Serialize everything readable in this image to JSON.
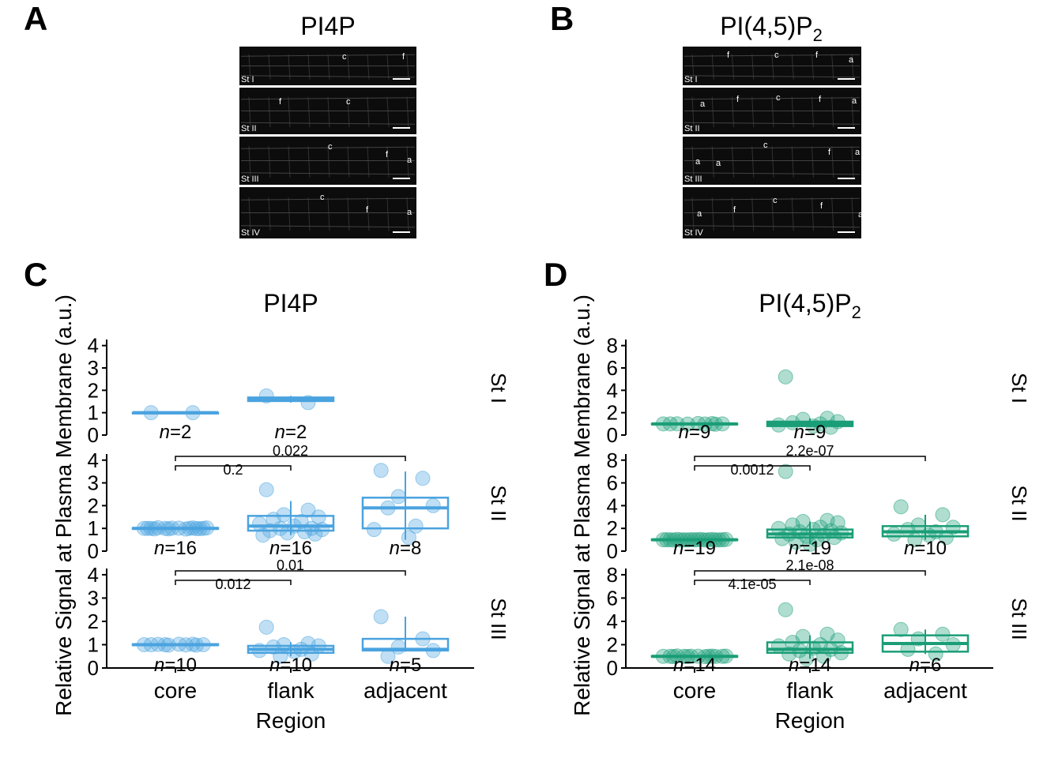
{
  "panel_letters": {
    "a": "A",
    "b": "B",
    "c": "C",
    "d": "D"
  },
  "micrographs": [
    {
      "title": "PI4P",
      "subscript": "",
      "rows": [
        {
          "stage": "St I",
          "labels": [
            "c",
            "f"
          ]
        },
        {
          "stage": "St II",
          "labels": [
            "f",
            "c"
          ]
        },
        {
          "stage": "St III",
          "labels": [
            "c",
            "f",
            "a"
          ]
        },
        {
          "stage": "St IV",
          "labels": [
            "c",
            "f",
            "a"
          ]
        }
      ]
    },
    {
      "title": "PI(4,5)P",
      "subscript": "2",
      "rows": [
        {
          "stage": "St I",
          "labels": [
            "f",
            "c",
            "f",
            "a"
          ]
        },
        {
          "stage": "St II",
          "labels": [
            "a",
            "f",
            "c",
            "f",
            "a"
          ]
        },
        {
          "stage": "St III",
          "labels": [
            "a",
            "a",
            "c",
            "f",
            "a"
          ]
        },
        {
          "stage": "St IV",
          "labels": [
            "a",
            "f",
            "c",
            "f",
            "a"
          ]
        }
      ]
    }
  ],
  "chart_data": [
    {
      "type": "box",
      "title": "PI4P",
      "title_subscript": "",
      "xlabel": "Region",
      "ylabel": "Relative Signal at Plasma Membrane (a.u.)",
      "categories": [
        "core",
        "flank",
        "adjacent"
      ],
      "ylim": [
        0,
        4.2
      ],
      "yticks": [
        0,
        1,
        2,
        3,
        4
      ],
      "color": "#4aa3df",
      "facets": [
        {
          "stage": "St I",
          "groups": [
            {
              "category": "core",
              "n_label": "n=2",
              "n_prefix": "n",
              "n_value": "=2",
              "box": [
                1.0,
                1.0,
                1.0,
                1.0,
                1.0
              ],
              "points": [
                1.0,
                1.0
              ]
            },
            {
              "category": "flank",
              "n_label": "n=2",
              "n_prefix": "n",
              "n_value": "=2",
              "box": [
                1.45,
                1.52,
                1.6,
                1.68,
                1.75
              ],
              "points": [
                1.75,
                1.45
              ]
            },
            null
          ],
          "comparisons": []
        },
        {
          "stage": "St II",
          "groups": [
            {
              "category": "core",
              "n_label": "n=16",
              "n_prefix": "n",
              "n_value": "=16",
              "box": [
                0.95,
                0.98,
                1.0,
                1.02,
                1.05
              ],
              "points": [
                1.0,
                1.02,
                0.98,
                1.0,
                1.03,
                0.97,
                1.0,
                1.01,
                0.99,
                1.0,
                1.02,
                0.98,
                1.0,
                1.01,
                0.99,
                1.0
              ]
            },
            {
              "category": "flank",
              "n_label": "n=16",
              "n_prefix": "n",
              "n_value": "=16",
              "box": [
                0.7,
                0.9,
                1.1,
                1.55,
                2.2
              ],
              "points": [
                2.7,
                1.8,
                1.6,
                1.5,
                1.4,
                1.3,
                1.2,
                1.1,
                1.0,
                1.0,
                0.95,
                0.9,
                0.85,
                0.8,
                0.75,
                0.7
              ]
            },
            {
              "category": "adjacent",
              "n_label": "n=8",
              "n_prefix": "n",
              "n_value": "=8",
              "box": [
                0.5,
                1.0,
                1.9,
                2.35,
                3.5
              ],
              "points": [
                3.55,
                3.2,
                2.4,
                2.0,
                1.9,
                1.1,
                0.95,
                0.6
              ]
            }
          ],
          "comparisons": [
            {
              "from": "core",
              "to": "flank",
              "label": "0.2"
            },
            {
              "from": "core",
              "to": "adjacent",
              "label": "0.022"
            }
          ]
        },
        {
          "stage": "St III",
          "groups": [
            {
              "category": "core",
              "n_label": "n=10",
              "n_prefix": "n",
              "n_value": "=10",
              "box": [
                0.95,
                0.98,
                1.0,
                1.02,
                1.05
              ],
              "points": [
                1.0,
                1.02,
                0.98,
                1.0,
                1.01,
                0.99,
                1.0,
                1.02,
                0.98,
                1.0
              ]
            },
            {
              "category": "flank",
              "n_label": "n=10",
              "n_prefix": "n",
              "n_value": "=10",
              "box": [
                0.5,
                0.65,
                0.8,
                0.95,
                1.1
              ],
              "points": [
                1.75,
                1.05,
                1.0,
                0.95,
                0.9,
                0.8,
                0.75,
                0.7,
                0.6,
                0.5
              ]
            },
            {
              "category": "adjacent",
              "n_label": "n=5",
              "n_prefix": "n",
              "n_value": "=5",
              "box": [
                0.7,
                0.75,
                0.8,
                1.25,
                2.2
              ],
              "points": [
                2.2,
                1.25,
                0.9,
                0.75,
                0.5
              ]
            }
          ],
          "comparisons": [
            {
              "from": "core",
              "to": "flank",
              "label": "0.012"
            },
            {
              "from": "core",
              "to": "adjacent",
              "label": "0.01"
            }
          ]
        }
      ]
    },
    {
      "type": "box",
      "title": "PI(4,5)P",
      "title_subscript": "2",
      "xlabel": "Region",
      "ylabel": "Relative Signal at Plasma Membrane (a.u.)",
      "categories": [
        "core",
        "flank",
        "adjacent"
      ],
      "ylim": [
        0,
        8.4
      ],
      "yticks": [
        0,
        2,
        4,
        6,
        8
      ],
      "color": "#1b9e77",
      "facets": [
        {
          "stage": "St I",
          "groups": [
            {
              "category": "core",
              "n_label": "n=9",
              "n_prefix": "n",
              "n_value": "=9",
              "box": [
                0.95,
                0.98,
                1.0,
                1.02,
                1.05
              ],
              "points": [
                1.0,
                1.02,
                0.98,
                1.0,
                1.01,
                0.99,
                1.0,
                1.03,
                0.97
              ]
            },
            {
              "category": "flank",
              "n_label": "n=9",
              "n_prefix": "n",
              "n_value": "=9",
              "box": [
                0.7,
                0.8,
                1.0,
                1.2,
                1.5
              ],
              "points": [
                5.2,
                1.5,
                1.4,
                1.2,
                1.1,
                1.0,
                0.9,
                0.8,
                0.7
              ]
            },
            null
          ],
          "comparisons": []
        },
        {
          "stage": "St II",
          "groups": [
            {
              "category": "core",
              "n_label": "n=19",
              "n_prefix": "n",
              "n_value": "=19",
              "box": [
                0.9,
                0.97,
                1.0,
                1.03,
                1.1
              ],
              "points": [
                1.0,
                1.02,
                0.98,
                1.0,
                1.03,
                0.97,
                1.0,
                1.01,
                0.99,
                1.0,
                1.02,
                0.98,
                1.0,
                1.01,
                0.99,
                1.0,
                1.02,
                0.98,
                1.0
              ]
            },
            {
              "category": "flank",
              "n_label": "n=19",
              "n_prefix": "n",
              "n_value": "=19",
              "box": [
                0.6,
                1.2,
                1.5,
                1.9,
                2.6
              ],
              "points": [
                7.0,
                2.7,
                2.6,
                2.5,
                2.3,
                2.1,
                2.0,
                1.9,
                1.8,
                1.7,
                1.6,
                1.5,
                1.4,
                1.3,
                1.2,
                1.1,
                1.0,
                0.8,
                0.6
              ]
            },
            {
              "category": "adjacent",
              "n_label": "n=10",
              "n_prefix": "n",
              "n_value": "=10",
              "box": [
                1.0,
                1.3,
                1.7,
                2.2,
                3.2
              ],
              "points": [
                3.9,
                3.2,
                2.3,
                2.1,
                1.9,
                1.7,
                1.5,
                1.4,
                1.2,
                1.0
              ]
            }
          ],
          "comparisons": [
            {
              "from": "core",
              "to": "flank",
              "label": "0.0012"
            },
            {
              "from": "core",
              "to": "adjacent",
              "label": "2.2e-07"
            }
          ]
        },
        {
          "stage": "St III",
          "groups": [
            {
              "category": "core",
              "n_label": "n=14",
              "n_prefix": "n",
              "n_value": "=14",
              "box": [
                0.9,
                0.97,
                1.0,
                1.03,
                1.1
              ],
              "points": [
                1.0,
                1.02,
                0.98,
                1.0,
                1.03,
                0.97,
                1.0,
                1.01,
                0.99,
                1.0,
                1.02,
                0.98,
                1.0,
                1.01
              ]
            },
            {
              "category": "flank",
              "n_label": "n=14",
              "n_prefix": "n",
              "n_value": "=14",
              "box": [
                0.8,
                1.3,
                1.6,
                2.2,
                2.8
              ],
              "points": [
                5.0,
                2.9,
                2.7,
                2.4,
                2.2,
                2.0,
                1.9,
                1.7,
                1.6,
                1.5,
                1.3,
                1.2,
                1.0,
                0.8
              ]
            },
            {
              "category": "adjacent",
              "n_label": "n=6",
              "n_prefix": "n",
              "n_value": "=6",
              "box": [
                1.2,
                1.4,
                2.1,
                2.8,
                3.3
              ],
              "points": [
                3.3,
                2.9,
                2.5,
                2.0,
                1.6,
                1.2
              ]
            }
          ],
          "comparisons": [
            {
              "from": "core",
              "to": "flank",
              "label": "4.1e-05"
            },
            {
              "from": "core",
              "to": "adjacent",
              "label": "2.1e-08"
            }
          ]
        }
      ]
    }
  ]
}
